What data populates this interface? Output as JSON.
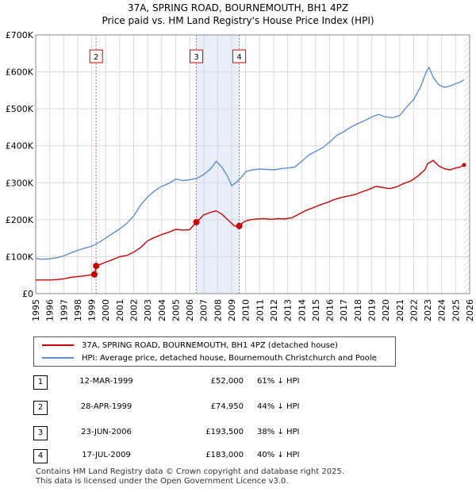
{
  "title": "37A, SPRING ROAD, BOURNEMOUTH, BH1 4PZ",
  "subtitle": "Price paid vs. HM Land Registry's House Price Index (HPI)",
  "colors": {
    "property": "#cc0000",
    "hpi": "#5b8fd0",
    "shade": "#e8eefa",
    "grid": "#d9d9d9",
    "marker_line": "#e06060"
  },
  "chart_data": {
    "type": "line",
    "xlim": [
      1995,
      2026
    ],
    "ylim": [
      0,
      700000
    ],
    "y_ticks": [
      0,
      100000,
      200000,
      300000,
      400000,
      500000,
      600000,
      700000
    ],
    "y_tick_labels": [
      "£0",
      "£100K",
      "£200K",
      "£300K",
      "£400K",
      "£500K",
      "£600K",
      "£700K"
    ],
    "x_ticks": [
      1995,
      1996,
      1997,
      1998,
      1999,
      2000,
      2001,
      2002,
      2003,
      2004,
      2005,
      2006,
      2007,
      2008,
      2009,
      2010,
      2011,
      2012,
      2013,
      2014,
      2015,
      2016,
      2017,
      2018,
      2019,
      2020,
      2021,
      2022,
      2023,
      2024,
      2025,
      2026
    ],
    "x_tick_labels": [
      "1995",
      "1996",
      "1997",
      "1998",
      "1999",
      "2000",
      "2001",
      "2002",
      "2003",
      "2004",
      "2005",
      "2006",
      "2007",
      "2008",
      "2009",
      "2010",
      "2011",
      "2012",
      "2013",
      "2014",
      "2015",
      "2016",
      "2017",
      "2018",
      "2019",
      "2020",
      "2021",
      "2022",
      "2023",
      "2024",
      "2025",
      "2026"
    ],
    "shaded_ranges": [
      [
        2006.48,
        2009.54
      ]
    ],
    "series": [
      {
        "name": "37A, SPRING ROAD, BOURNEMOUTH, BH1 4PZ (detached house)",
        "color": "#cc0000",
        "x": [
          1995.0,
          1996.0,
          1996.5,
          1997.0,
          1997.5,
          1998.0,
          1998.5,
          1999.2,
          1999.33,
          1999.6,
          2000.0,
          2000.5,
          2001.0,
          2001.5,
          2002.0,
          2002.5,
          2003.0,
          2003.5,
          2004.0,
          2004.5,
          2005.0,
          2005.5,
          2006.0,
          2006.48,
          2006.8,
          2007.0,
          2007.5,
          2007.9,
          2008.3,
          2008.8,
          2009.2,
          2009.54,
          2009.9,
          2010.3,
          2010.8,
          2011.3,
          2011.8,
          2012.3,
          2012.8,
          2013.3,
          2013.8,
          2014.3,
          2014.8,
          2015.3,
          2015.8,
          2016.3,
          2016.8,
          2017.3,
          2017.8,
          2018.3,
          2018.8,
          2019.3,
          2019.8,
          2020.3,
          2020.8,
          2021.3,
          2021.8,
          2022.3,
          2022.8,
          2023.0,
          2023.4,
          2023.8,
          2024.2,
          2024.6,
          2025.0,
          2025.3,
          2025.6
        ],
        "values": [
          37000,
          37000,
          38000,
          40000,
          44000,
          46000,
          48000,
          52000,
          74950,
          79000,
          85000,
          92000,
          100000,
          103000,
          112000,
          125000,
          143000,
          152000,
          160000,
          166000,
          174000,
          172000,
          173000,
          193500,
          205000,
          213000,
          220000,
          224000,
          215000,
          197000,
          183000,
          183000,
          195000,
          200000,
          202000,
          203000,
          201000,
          203000,
          202000,
          205000,
          215000,
          225000,
          232000,
          240000,
          246000,
          254000,
          260000,
          264000,
          268000,
          275000,
          282000,
          290000,
          287000,
          284000,
          289000,
          298000,
          305000,
          318000,
          335000,
          352000,
          360000,
          345000,
          338000,
          335000,
          340000,
          342000,
          348000
        ]
      },
      {
        "name": "HPI: Average price, detached house, Bournemouth Christchurch and Poole",
        "color": "#5b8fd0",
        "x": [
          1995.0,
          1995.5,
          1996.0,
          1996.5,
          1997.0,
          1997.5,
          1998.0,
          1998.5,
          1999.0,
          1999.5,
          2000.0,
          2000.5,
          2001.0,
          2001.5,
          2002.0,
          2002.5,
          2003.0,
          2003.5,
          2004.0,
          2004.5,
          2005.0,
          2005.5,
          2006.0,
          2006.5,
          2007.0,
          2007.5,
          2007.9,
          2008.3,
          2008.7,
          2009.0,
          2009.3,
          2009.7,
          2010.0,
          2010.5,
          2011.0,
          2011.5,
          2012.0,
          2012.5,
          2013.0,
          2013.5,
          2014.0,
          2014.5,
          2015.0,
          2015.5,
          2016.0,
          2016.5,
          2017.0,
          2017.5,
          2018.0,
          2018.5,
          2019.0,
          2019.5,
          2020.0,
          2020.5,
          2021.0,
          2021.5,
          2022.0,
          2022.5,
          2022.9,
          2023.1,
          2023.4,
          2023.8,
          2024.2,
          2024.6,
          2025.0,
          2025.3,
          2025.6
        ],
        "values": [
          95000,
          93000,
          94000,
          97000,
          102000,
          110000,
          117000,
          123000,
          128000,
          138000,
          150000,
          163000,
          175000,
          190000,
          210000,
          240000,
          262000,
          278000,
          290000,
          298000,
          310000,
          306000,
          308000,
          312000,
          322000,
          338000,
          358000,
          342000,
          318000,
          292000,
          300000,
          315000,
          330000,
          335000,
          337000,
          336000,
          335000,
          338000,
          340000,
          342000,
          358000,
          375000,
          385000,
          395000,
          410000,
          428000,
          438000,
          450000,
          460000,
          468000,
          478000,
          485000,
          478000,
          476000,
          482000,
          505000,
          525000,
          560000,
          600000,
          612000,
          585000,
          565000,
          558000,
          562000,
          568000,
          572000,
          578000
        ]
      }
    ],
    "transactions": [
      {
        "id": "1",
        "x": 1999.19,
        "value": 52000
      },
      {
        "id": "2",
        "x": 1999.32,
        "value": 74950
      },
      {
        "id": "3",
        "x": 2006.48,
        "value": 193500
      },
      {
        "id": "4",
        "x": 2009.54,
        "value": 183000
      }
    ],
    "marker_boxes": [
      {
        "label": "2",
        "x": 1999.32
      },
      {
        "label": "3",
        "x": 2006.48
      },
      {
        "label": "4",
        "x": 2009.54
      }
    ]
  },
  "legend": {
    "property_label": "37A, SPRING ROAD, BOURNEMOUTH, BH1 4PZ (detached house)",
    "hpi_label": "HPI: Average price, detached house, Bournemouth Christchurch and Poole"
  },
  "transactions_table": [
    {
      "num": "1",
      "date": "12-MAR-1999",
      "price": "£52,000",
      "hpi": "61% ↓ HPI"
    },
    {
      "num": "2",
      "date": "28-APR-1999",
      "price": "£74,950",
      "hpi": "44% ↓ HPI"
    },
    {
      "num": "3",
      "date": "23-JUN-2006",
      "price": "£193,500",
      "hpi": "38% ↓ HPI"
    },
    {
      "num": "4",
      "date": "17-JUL-2009",
      "price": "£183,000",
      "hpi": "40% ↓ HPI"
    }
  ],
  "footer": {
    "line1": "Contains HM Land Registry data © Crown copyright and database right 2025.",
    "line2": "This data is licensed under the Open Government Licence v3.0."
  }
}
